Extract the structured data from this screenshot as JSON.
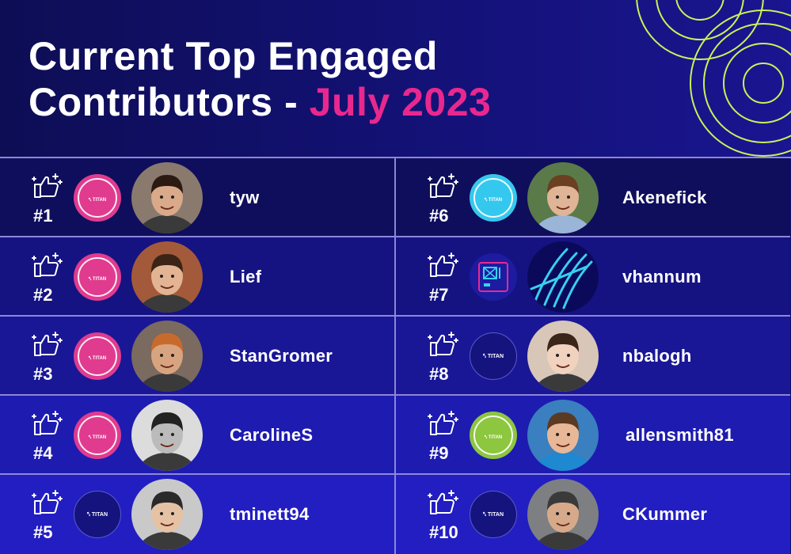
{
  "title": {
    "line1": "Current Top Engaged",
    "line2_prefix": "Contributors - ",
    "line2_accent": "July 2023"
  },
  "colors": {
    "accent": "#e9288f",
    "background": "#10106a",
    "ring": "#c9f25a"
  },
  "contributors": [
    {
      "rank": "#1",
      "name": "tyw",
      "badge_color": "pink",
      "badge_text": "TITAN"
    },
    {
      "rank": "#2",
      "name": "Lief",
      "badge_color": "pink",
      "badge_text": "TITAN"
    },
    {
      "rank": "#3",
      "name": "StanGromer",
      "badge_color": "pink",
      "badge_text": "TITAN"
    },
    {
      "rank": "#4",
      "name": "CarolineS",
      "badge_color": "pink",
      "badge_text": "TITAN"
    },
    {
      "rank": "#5",
      "name": "tminett94",
      "badge_color": "navy",
      "badge_text": "TITAN"
    },
    {
      "rank": "#6",
      "name": "Akenefick",
      "badge_color": "cyan",
      "badge_text": "TITAN"
    },
    {
      "rank": "#7",
      "name": "vhannum",
      "badge_color": "tile",
      "badge_text": ""
    },
    {
      "rank": "#8",
      "name": "nbalogh",
      "badge_color": "navy",
      "badge_text": "TITAN"
    },
    {
      "rank": "#9",
      "name": "allensmith81",
      "badge_color": "lime",
      "badge_text": "TITAN"
    },
    {
      "rank": "#10",
      "name": "CKummer",
      "badge_color": "navy",
      "badge_text": "TITAN"
    }
  ],
  "row_colors": [
    "#0f0e5c",
    "#151382",
    "#191796",
    "#1e1bb0",
    "#221ec2"
  ]
}
